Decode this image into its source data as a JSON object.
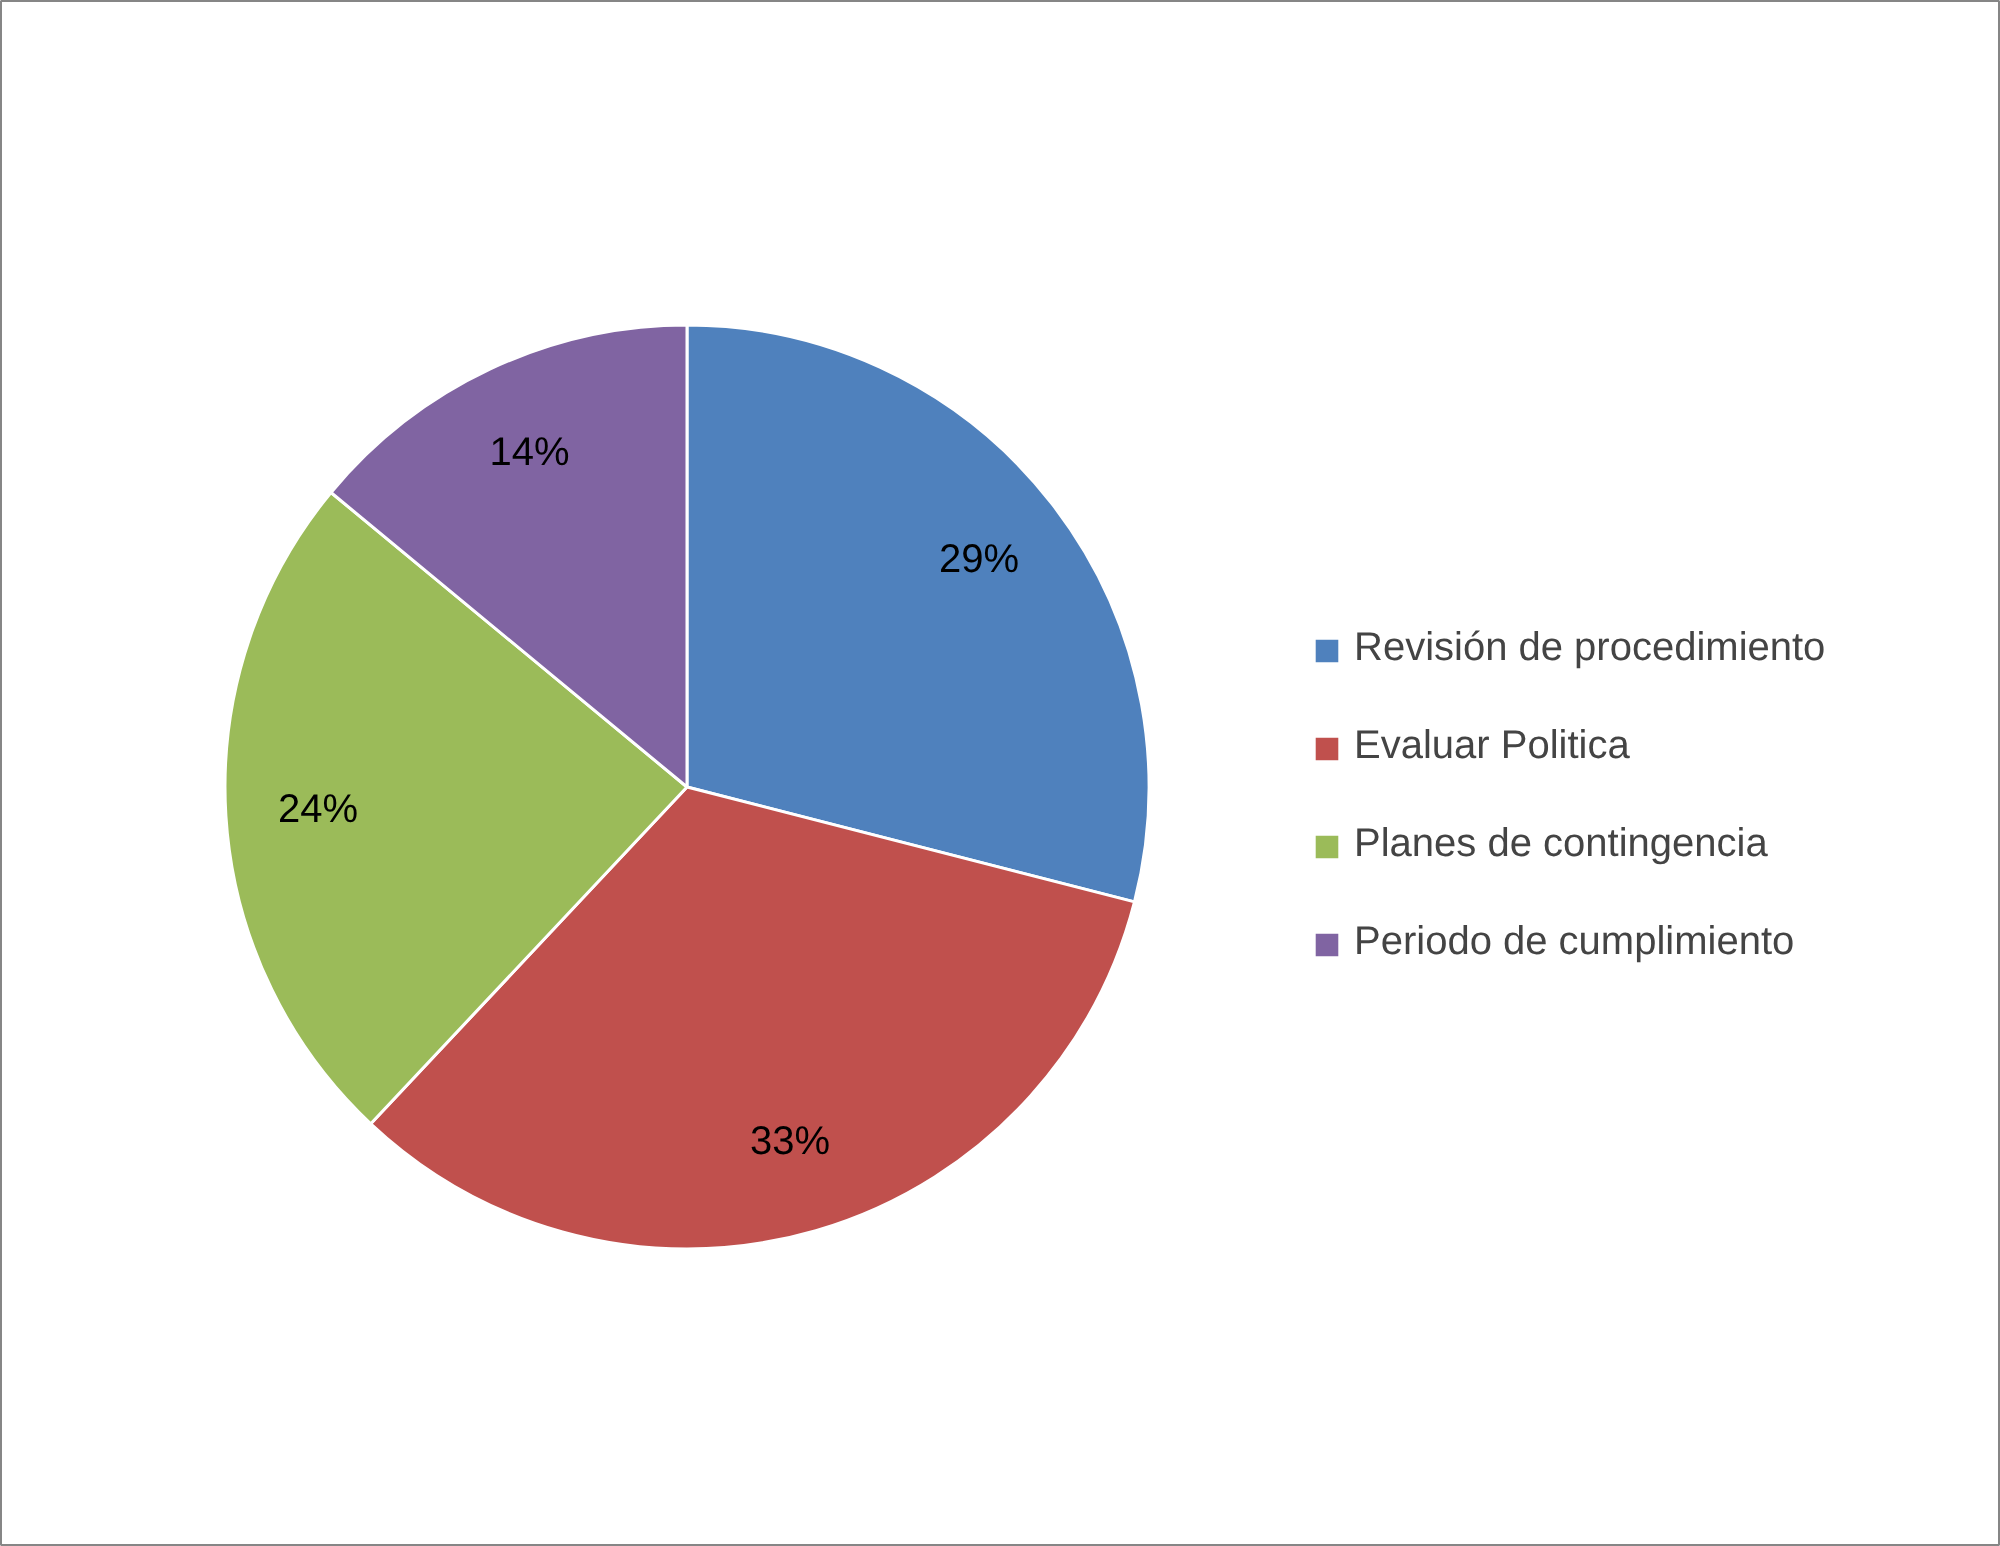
{
  "chart_data": {
    "type": "pie",
    "categories": [
      "Revisión de procedimiento",
      "Evaluar Politica",
      "Planes de contingencia",
      "Periodo de cumplimiento"
    ],
    "values": [
      29,
      33,
      24,
      14
    ],
    "colors": [
      "#4f81bd",
      "#c0504d",
      "#9bbb59",
      "#8064a2"
    ],
    "value_labels": [
      "29%",
      "33%",
      "24%",
      "14%"
    ],
    "legend": "right"
  }
}
